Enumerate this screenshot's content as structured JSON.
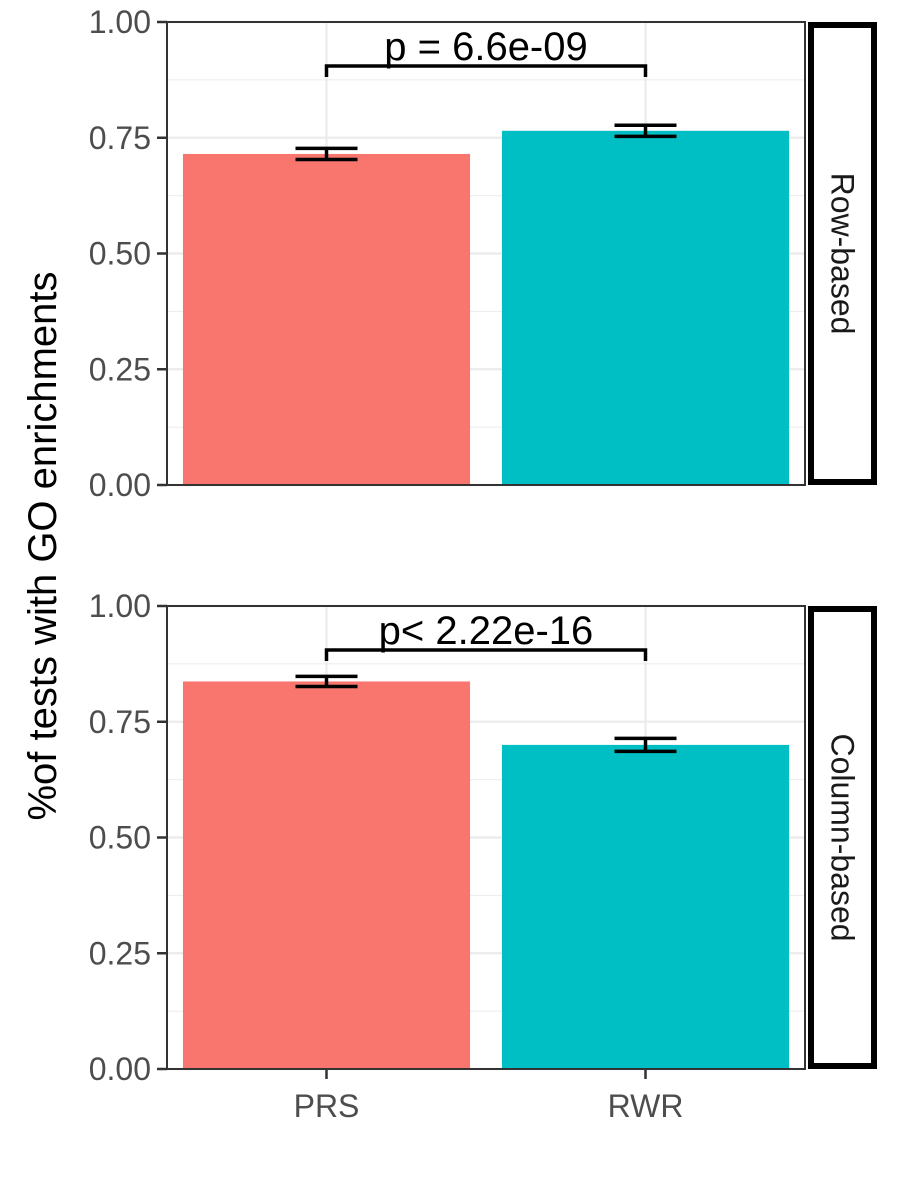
{
  "chart_data": {
    "type": "bar",
    "ylabel": "%of tests with GO enrichments",
    "categories": [
      "PRS",
      "RWR"
    ],
    "colors": {
      "PRS": "#F8766D",
      "RWR": "#00BFC4"
    },
    "ylim": [
      0,
      1
    ],
    "y_ticks": [
      "0.00",
      "0.25",
      "0.50",
      "0.75",
      "1.00"
    ],
    "grid": true,
    "panels": [
      {
        "strip_label": "Row-based",
        "values": [
          0.715,
          0.765
        ],
        "error_low": [
          0.703,
          0.753
        ],
        "error_high": [
          0.727,
          0.777
        ],
        "comparison": {
          "from": "PRS",
          "to": "RWR",
          "bracket_y": 0.905,
          "label": "p = 6.6e-09"
        }
      },
      {
        "strip_label": "Column-based",
        "values": [
          0.837,
          0.7
        ],
        "error_low": [
          0.826,
          0.686
        ],
        "error_high": [
          0.848,
          0.714
        ],
        "comparison": {
          "from": "PRS",
          "to": "RWR",
          "bracket_y": 0.905,
          "label": "p< 2.22e-16"
        }
      }
    ]
  }
}
